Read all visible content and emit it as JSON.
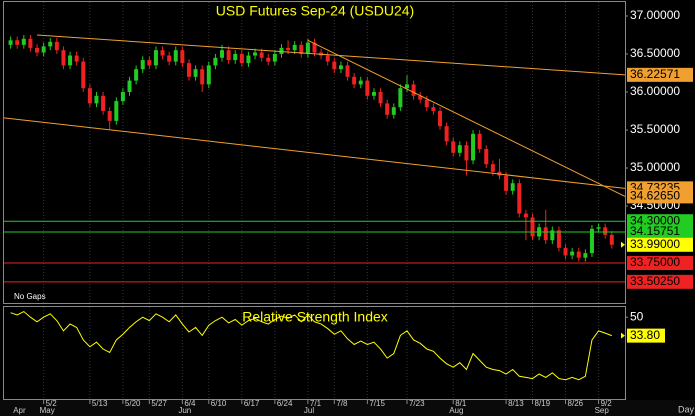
{
  "chart_data": [
    {
      "type": "candlestick",
      "title": "USD Futures Sep-24 (USDU24)",
      "note": "No Gaps",
      "open": [
        36.62,
        36.68,
        36.62,
        36.7,
        36.58,
        36.52,
        36.6,
        36.66,
        36.55,
        36.35,
        36.48,
        36.4,
        36.05,
        35.85,
        35.95,
        35.75,
        35.62,
        35.88,
        36.0,
        36.15,
        36.3,
        36.42,
        36.35,
        36.55,
        36.48,
        36.4,
        36.55,
        36.38,
        36.2,
        36.3,
        36.1,
        36.35,
        36.45,
        36.55,
        36.42,
        36.5,
        36.38,
        36.48,
        36.52,
        36.45,
        36.4,
        36.5,
        36.58,
        36.55,
        36.62,
        36.5,
        36.65,
        36.52,
        36.48,
        36.4,
        36.3,
        36.35,
        36.2,
        36.1,
        36.15,
        35.95,
        36.0,
        35.85,
        35.7,
        35.8,
        36.05,
        36.1,
        35.95,
        35.9,
        35.8,
        35.75,
        35.55,
        35.35,
        35.2,
        35.3,
        35.1,
        35.45,
        35.25,
        35.05,
        34.95,
        34.9,
        34.7,
        34.8,
        34.4,
        34.35,
        34.1,
        34.22,
        34.05,
        34.18,
        33.95,
        33.85,
        33.9,
        33.82,
        33.88,
        34.2,
        34.22,
        34.12
      ],
      "high": [
        36.73,
        36.73,
        36.75,
        36.75,
        36.63,
        36.65,
        36.71,
        36.71,
        36.6,
        36.53,
        36.53,
        36.45,
        36.1,
        36.0,
        36.0,
        35.8,
        35.93,
        36.05,
        36.2,
        36.35,
        36.47,
        36.47,
        36.6,
        36.6,
        36.53,
        36.6,
        36.6,
        36.43,
        36.35,
        36.35,
        36.4,
        36.5,
        36.62,
        36.6,
        36.55,
        36.55,
        36.53,
        36.57,
        36.57,
        36.5,
        36.55,
        36.63,
        36.68,
        36.67,
        36.67,
        36.7,
        36.7,
        36.57,
        36.53,
        36.45,
        36.4,
        36.4,
        36.25,
        36.2,
        36.2,
        36.05,
        36.05,
        35.9,
        35.85,
        36.1,
        36.22,
        36.15,
        36.0,
        35.95,
        35.85,
        35.8,
        35.6,
        35.4,
        35.35,
        35.35,
        35.5,
        35.5,
        35.3,
        35.1,
        35.12,
        34.95,
        34.85,
        34.85,
        34.45,
        34.4,
        34.27,
        34.45,
        34.23,
        34.23,
        34.0,
        33.95,
        33.95,
        33.93,
        34.25,
        34.27,
        34.27,
        34.17
      ],
      "low": [
        36.57,
        36.57,
        36.57,
        36.53,
        36.47,
        36.47,
        36.55,
        36.5,
        36.3,
        36.3,
        36.35,
        36.0,
        35.8,
        35.8,
        35.7,
        35.5,
        35.57,
        35.83,
        35.95,
        36.1,
        36.25,
        36.3,
        36.3,
        36.43,
        36.35,
        36.35,
        36.33,
        36.15,
        36.15,
        36.0,
        36.05,
        36.3,
        36.4,
        36.37,
        36.37,
        36.33,
        36.33,
        36.43,
        36.4,
        36.35,
        36.35,
        36.45,
        36.5,
        36.5,
        36.45,
        36.45,
        36.47,
        36.43,
        36.35,
        36.25,
        36.25,
        36.15,
        36.05,
        36.05,
        35.9,
        35.9,
        35.8,
        35.65,
        35.65,
        35.75,
        36.0,
        35.9,
        35.85,
        35.75,
        35.7,
        35.5,
        35.3,
        35.15,
        35.15,
        34.9,
        35.05,
        35.2,
        35.0,
        34.9,
        34.85,
        34.65,
        34.65,
        34.35,
        34.05,
        34.05,
        34.05,
        34.0,
        34.0,
        33.9,
        33.8,
        33.8,
        33.77,
        33.77,
        33.83,
        34.15,
        34.07,
        33.94
      ],
      "close": [
        36.68,
        36.62,
        36.7,
        36.58,
        36.52,
        36.6,
        36.66,
        36.55,
        36.35,
        36.48,
        36.4,
        36.05,
        35.85,
        35.95,
        35.75,
        35.62,
        35.88,
        36.0,
        36.15,
        36.3,
        36.42,
        36.35,
        36.55,
        36.48,
        36.4,
        36.55,
        36.38,
        36.2,
        36.3,
        36.1,
        36.35,
        36.45,
        36.55,
        36.42,
        36.5,
        36.38,
        36.48,
        36.52,
        36.45,
        36.4,
        36.5,
        36.58,
        36.55,
        36.62,
        36.5,
        36.65,
        36.52,
        36.48,
        36.4,
        36.3,
        36.35,
        36.2,
        36.1,
        36.15,
        35.95,
        36.0,
        35.85,
        35.7,
        35.8,
        36.05,
        36.1,
        35.95,
        35.9,
        35.8,
        35.75,
        35.55,
        35.35,
        35.2,
        35.3,
        35.1,
        35.45,
        35.25,
        35.05,
        34.95,
        34.9,
        34.7,
        34.8,
        34.4,
        34.35,
        34.1,
        34.22,
        34.05,
        34.18,
        33.95,
        33.85,
        33.9,
        33.82,
        33.88,
        34.2,
        34.22,
        34.12,
        33.99
      ],
      "close_label": "33.99000",
      "close_label_color": "#ffff00",
      "up_color": "#22cc22",
      "down_color": "#ee2222",
      "xlim": [
        -1,
        93
      ],
      "ylim": [
        33.224,
        37.184
      ],
      "yticks": [
        {
          "value": 37,
          "label": "37.00000"
        },
        {
          "value": 36.5,
          "label": "36.50000"
        },
        {
          "value": 36,
          "label": "36.00000"
        },
        {
          "value": 35.5,
          "label": "35.50000"
        },
        {
          "value": 35,
          "label": "35.00000"
        },
        {
          "value": 34.5,
          "label": "34.50000"
        }
      ],
      "levels": [
        {
          "value": 36.22571,
          "label": "36.22571",
          "color": "#f0a030",
          "from": [
            4,
            36.75
          ]
        },
        {
          "value": 34.73235,
          "label": "34.73235",
          "color": "#f0a030",
          "from": [
            -1,
            35.66
          ]
        },
        {
          "value": 34.6265,
          "label": "34.62650",
          "color": "#f0a030",
          "from": [
            45,
            36.68
          ]
        },
        {
          "value": 34.3,
          "label": "34.30000",
          "color": "#22cc22"
        },
        {
          "value": 34.15751,
          "label": "34.15751",
          "color": "#22cc22"
        },
        {
          "value": 33.75,
          "label": "33.75000",
          "color": "#ee2222"
        },
        {
          "value": 33.5025,
          "label": "33.50250",
          "color": "#ee2222"
        }
      ]
    },
    {
      "type": "line",
      "title": "Relative Strength Index",
      "color": "#ffff00",
      "values": [
        54,
        52,
        55,
        50,
        46,
        50,
        53,
        47,
        38,
        44,
        41,
        30,
        24,
        28,
        22,
        19,
        30,
        35,
        41,
        46,
        50,
        47,
        53,
        50,
        46,
        52,
        44,
        37,
        41,
        34,
        43,
        47,
        50,
        45,
        48,
        43,
        47,
        49,
        46,
        44,
        48,
        51,
        49,
        52,
        46,
        52,
        46,
        44,
        40,
        35,
        38,
        31,
        26,
        29,
        26,
        28,
        22,
        14,
        18,
        34,
        38,
        30,
        27,
        22,
        20,
        14,
        9,
        6,
        10,
        4,
        18,
        12,
        6,
        4,
        3,
        0,
        4,
        -2,
        -3,
        -4,
        0,
        -3,
        1,
        -4,
        -5,
        -3,
        -5,
        -2,
        30,
        38,
        36,
        33.8
      ],
      "value_label": "33.80",
      "xlim": [
        -1,
        93
      ],
      "ylim": [
        -22,
        59
      ],
      "yticks": [
        50
      ],
      "xticks": [
        {
          "value": 5,
          "label": "5/2"
        },
        {
          "value": 12,
          "label": "5/13"
        },
        {
          "value": 17,
          "label": "5/20"
        },
        {
          "value": 21,
          "label": "5/27"
        },
        {
          "value": 26,
          "label": "6/4"
        },
        {
          "value": 30,
          "label": "6/10"
        },
        {
          "value": 35,
          "label": "6/17"
        },
        {
          "value": 40,
          "label": "6/24"
        },
        {
          "value": 45,
          "label": "7/1"
        },
        {
          "value": 49,
          "label": "7/8"
        },
        {
          "value": 54,
          "label": "7/15"
        },
        {
          "value": 60,
          "label": "7/23"
        },
        {
          "value": 67,
          "label": "8/1"
        },
        {
          "value": 75,
          "label": "8/13"
        },
        {
          "value": 79,
          "label": "8/19"
        },
        {
          "value": 84,
          "label": "8/26"
        },
        {
          "value": 89,
          "label": "9/2"
        }
      ],
      "months": [
        {
          "value": 1,
          "label": "Apr"
        },
        {
          "value": 5,
          "label": "May"
        },
        {
          "value": 26,
          "label": "Jun"
        },
        {
          "value": 45,
          "label": "Jul"
        },
        {
          "value": 67,
          "label": "Aug"
        },
        {
          "value": 89,
          "label": "Sep"
        }
      ],
      "x_label": "Day"
    }
  ]
}
